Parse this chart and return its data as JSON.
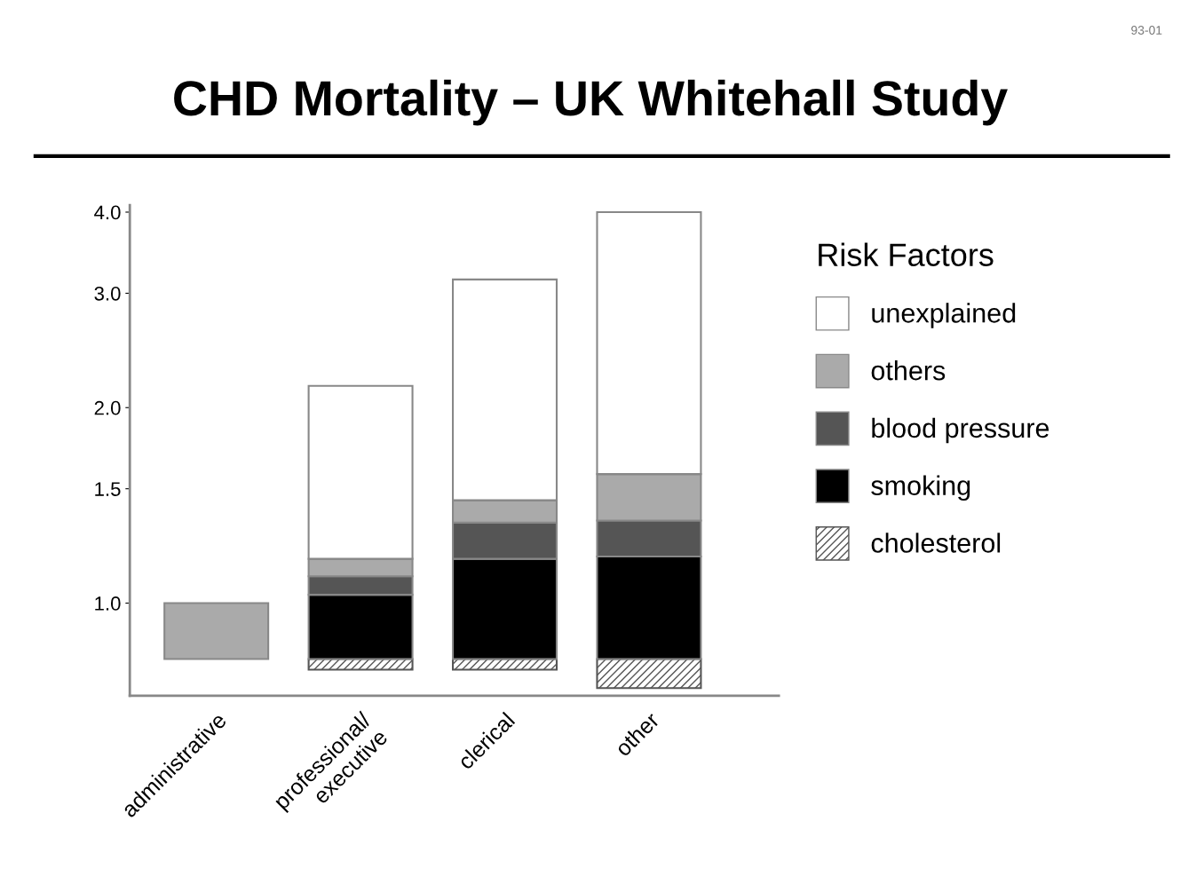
{
  "chart_data": {
    "type": "bar",
    "title": "CHD Mortality – UK Whitehall Study",
    "annotations": [
      "93-01"
    ],
    "legend_title": "Risk Factors",
    "categories": [
      "administrative",
      "professional/\nexecutive",
      "clerical",
      "other"
    ],
    "series": [
      {
        "name": "cholesterol",
        "color": "#555555",
        "base": [
          null,
          0.79,
          0.79,
          0.74
        ],
        "values": [
          null,
          0.03,
          0.03,
          0.08
        ]
      },
      {
        "name": "smoking",
        "color": "#000000",
        "base": [
          null,
          0.82,
          0.82,
          0.82
        ],
        "values": [
          null,
          0.21,
          0.35,
          0.36
        ]
      },
      {
        "name": "blood pressure",
        "color": "#555555",
        "base": [
          null,
          1.03,
          1.17,
          1.18
        ],
        "values": [
          null,
          0.07,
          0.16,
          0.16
        ]
      },
      {
        "name": "others",
        "color": "#aaaaaa",
        "base": [
          0.82,
          1.1,
          1.33,
          1.34
        ],
        "values": [
          0.18,
          0.07,
          0.11,
          0.24
        ]
      },
      {
        "name": "unexplained",
        "color": "#ffffff",
        "base": [
          null,
          1.17,
          1.44,
          1.58
        ],
        "values": [
          null,
          0.99,
          1.71,
          2.42
        ]
      }
    ],
    "log": true,
    "ylim": [
      0.72,
      4.1
    ],
    "yticks": [
      {
        "value": 1.0,
        "label": "1.0"
      },
      {
        "value": 1.5,
        "label": "1.5"
      },
      {
        "value": 2.0,
        "label": "2.0"
      },
      {
        "value": 3.0,
        "label": "3.0"
      },
      {
        "value": 4.0,
        "label": "4.0"
      }
    ],
    "legend": "right",
    "grid": false
  }
}
